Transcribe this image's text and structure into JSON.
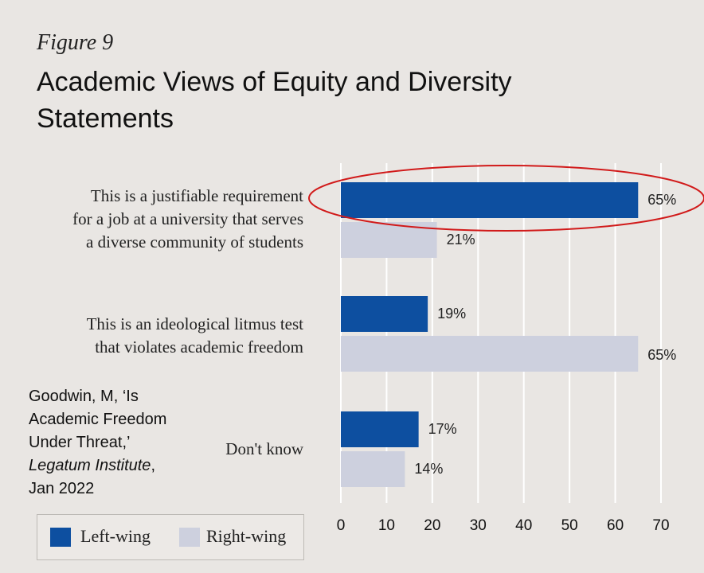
{
  "figure_label": "Figure 9",
  "source": {
    "line1": "Goodwin, M, ‘Is",
    "line2": "Academic Freedom",
    "line3": "Under Threat,’",
    "publication": "Legatum Institute",
    "line4_suffix": ",",
    "line5": "Jan 2022"
  },
  "chart_data": {
    "type": "bar",
    "orientation": "horizontal",
    "title": "Academic Views of Equity and Diversity Statements",
    "categories": [
      "This is a justifiable requirement\nfor a job at a university that serves\na diverse community of students",
      "This is an ideological litmus test\nthat violates academic freedom",
      "Don't know"
    ],
    "series": [
      {
        "name": "Left-wing",
        "values": [
          65,
          19,
          17
        ],
        "color": "#0d4fa0"
      },
      {
        "name": "Right-wing",
        "values": [
          21,
          65,
          14
        ],
        "color": "#cdd0de"
      }
    ],
    "data_labels": [
      [
        "65%",
        "19%",
        "17%"
      ],
      [
        "21%",
        "65%",
        "14%"
      ]
    ],
    "xticks": [
      0,
      10,
      20,
      30,
      40,
      50,
      60,
      70
    ],
    "xlim": [
      0,
      70
    ],
    "grid": true,
    "legend_position": "bottom-left",
    "annotation": {
      "type": "ellipse",
      "color": "#d11a1a",
      "highlights": "Left-wing, first category"
    }
  }
}
